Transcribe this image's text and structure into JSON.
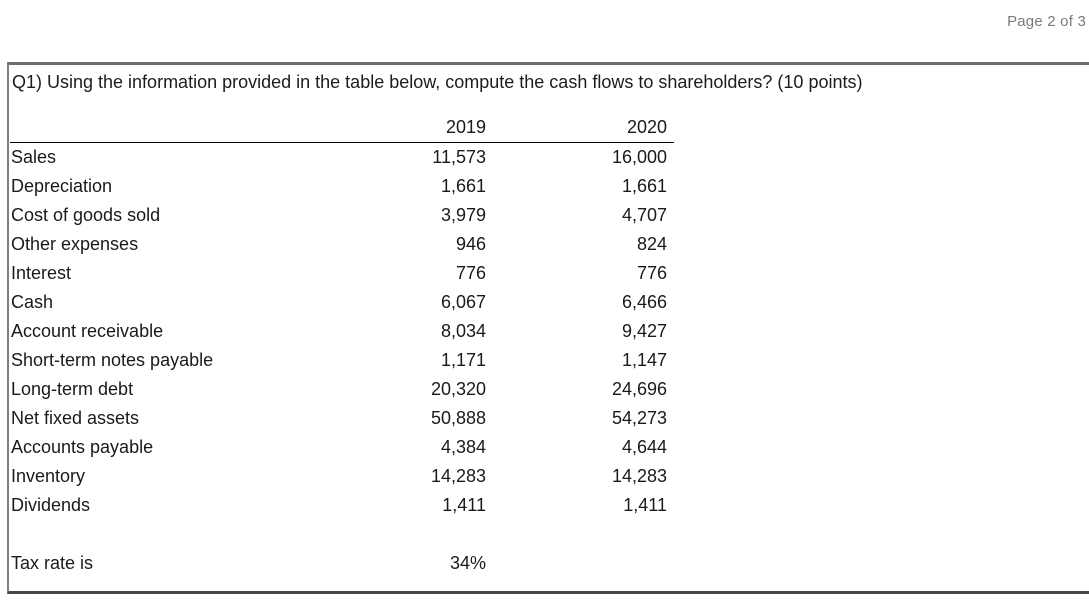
{
  "header": {
    "page_indicator": "Page 2 of 3"
  },
  "question": {
    "text": "Q1) Using the information provided in the table below, compute the cash flows to shareholders? (10 points)"
  },
  "table": {
    "columns": [
      "2019",
      "2020"
    ],
    "rows": [
      {
        "label": "Sales",
        "y2019": "11,573",
        "y2020": "16,000"
      },
      {
        "label": "Depreciation",
        "y2019": "1,661",
        "y2020": "1,661"
      },
      {
        "label": "Cost of goods sold",
        "y2019": "3,979",
        "y2020": "4,707"
      },
      {
        "label": "Other expenses",
        "y2019": "946",
        "y2020": "824"
      },
      {
        "label": "Interest",
        "y2019": "776",
        "y2020": "776"
      },
      {
        "label": "Cash",
        "y2019": "6,067",
        "y2020": "6,466"
      },
      {
        "label": "Account receivable",
        "y2019": "8,034",
        "y2020": "9,427"
      },
      {
        "label": "Short-term notes payable",
        "y2019": "1,171",
        "y2020": "1,147"
      },
      {
        "label": "Long-term debt",
        "y2019": "20,320",
        "y2020": "24,696"
      },
      {
        "label": "Net fixed assets",
        "y2019": "50,888",
        "y2020": "54,273"
      },
      {
        "label": "Accounts payable",
        "y2019": "4,384",
        "y2020": "4,644"
      },
      {
        "label": "Inventory",
        "y2019": "14,283",
        "y2020": "14,283"
      },
      {
        "label": "Dividends",
        "y2019": "1,411",
        "y2020": "1,411"
      }
    ],
    "tax": {
      "label": "Tax rate is",
      "value": "34%"
    }
  },
  "colors": {
    "page_indicator_text": "#7a7a7a",
    "body_text": "#1a1a1a",
    "box_border_top": "#6d6d6d",
    "box_border_left": "#7f7f7f",
    "box_border_bottom": "#474747",
    "header_underline": "#000000",
    "background": "#ffffff"
  }
}
